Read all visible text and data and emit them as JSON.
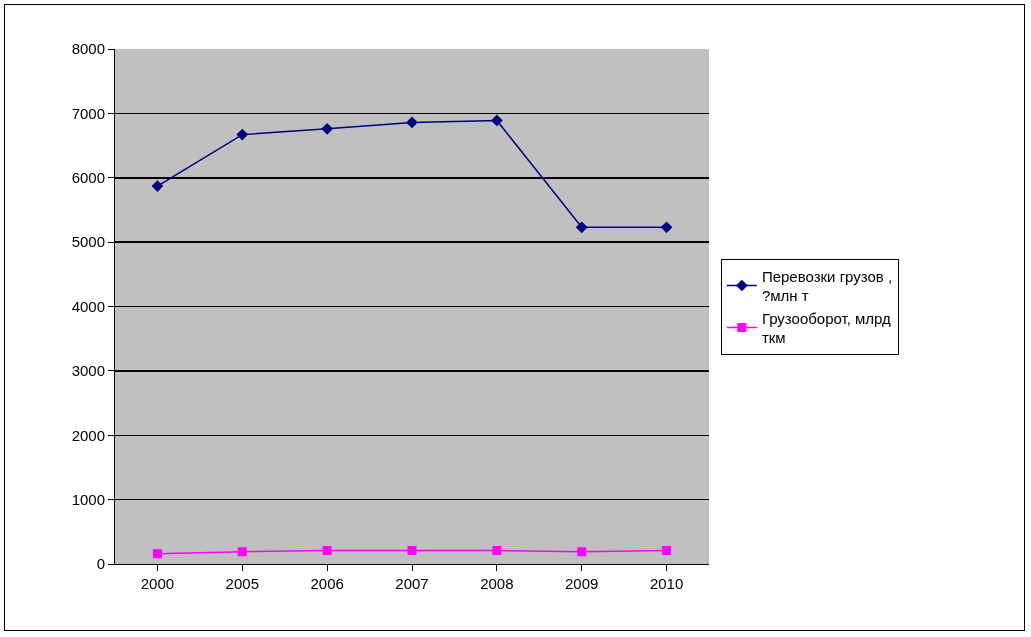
{
  "chart_data": {
    "type": "line",
    "categories": [
      "2000",
      "2005",
      "2006",
      "2007",
      "2008",
      "2009",
      "2010"
    ],
    "series": [
      {
        "name": "Перевозки грузов ,\n?млн т",
        "color": "#000080",
        "marker": "diamond",
        "values": [
          5870,
          6670,
          6760,
          6860,
          6890,
          5230,
          5230
        ]
      },
      {
        "name": "Грузооборот, млрд\nткм",
        "color": "#ff00ff",
        "marker": "square",
        "values": [
          160,
          190,
          210,
          210,
          210,
          190,
          210
        ]
      }
    ],
    "ylim": [
      0,
      8000
    ],
    "yticks": [
      0,
      1000,
      2000,
      3000,
      4000,
      5000,
      6000,
      7000,
      8000
    ],
    "grid": "y",
    "legend": "right",
    "line_style": "solid"
  }
}
